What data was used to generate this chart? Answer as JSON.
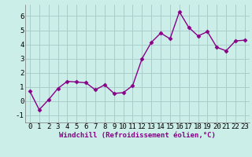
{
  "x": [
    0,
    1,
    2,
    3,
    4,
    5,
    6,
    7,
    8,
    9,
    10,
    11,
    12,
    13,
    14,
    15,
    16,
    17,
    18,
    19,
    20,
    21,
    22,
    23
  ],
  "y": [
    0.7,
    -0.6,
    0.1,
    0.9,
    1.4,
    1.35,
    1.3,
    0.8,
    1.15,
    0.55,
    0.6,
    1.1,
    3.0,
    4.15,
    4.8,
    4.4,
    6.3,
    5.2,
    4.6,
    4.9,
    3.8,
    3.55,
    4.25,
    4.3
  ],
  "line_color": "#880088",
  "marker": "D",
  "marker_size": 2.5,
  "bg_color": "#cceee8",
  "grid_color": "#aacccc",
  "xlabel": "Windchill (Refroidissement éolien,°C)",
  "ylim": [
    -1.5,
    6.8
  ],
  "xlim": [
    -0.5,
    23.5
  ],
  "yticks": [
    -1,
    0,
    1,
    2,
    3,
    4,
    5,
    6
  ],
  "xticks": [
    0,
    1,
    2,
    3,
    4,
    5,
    6,
    7,
    8,
    9,
    10,
    11,
    12,
    13,
    14,
    15,
    16,
    17,
    18,
    19,
    20,
    21,
    22,
    23
  ],
  "xlabel_fontsize": 6.5,
  "tick_fontsize": 6.5,
  "linewidth": 1.0
}
